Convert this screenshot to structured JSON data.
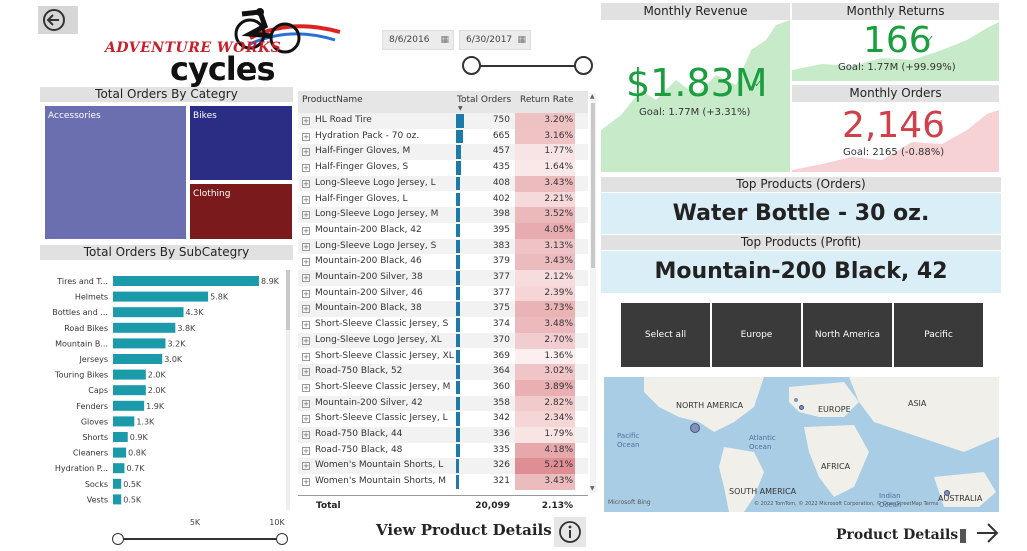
{
  "logo": {
    "line1": "ADVENTURE WORKS",
    "line2": "cycles"
  },
  "date_range": {
    "start": "8/6/2016",
    "end": "6/30/2017",
    "slider_start_fraction": 0.0,
    "slider_end_fraction": 1.0
  },
  "treemap": {
    "title": "Total Orders By Categry",
    "items": [
      {
        "label": "Accessories",
        "color": "#6b6fb0"
      },
      {
        "label": "Bikes",
        "color": "#2b2d84"
      },
      {
        "label": "Clothing",
        "color": "#7a1a1c"
      }
    ]
  },
  "subcat": {
    "title": "Total Orders By SubCategry",
    "axis_ticks": [
      "5K",
      "10K"
    ],
    "slider_start_fraction": 0.0,
    "slider_end_fraction": 1.0
  },
  "chart_data": {
    "type": "bar",
    "orientation": "horizontal",
    "title": "Total Orders By SubCategry",
    "categories": [
      "Tires and T...",
      "Helmets",
      "Bottles and ...",
      "Road Bikes",
      "Mountain B...",
      "Jerseys",
      "Touring Bikes",
      "Caps",
      "Fenders",
      "Gloves",
      "Shorts",
      "Cleaners",
      "Hydration P...",
      "Socks",
      "Vests"
    ],
    "values": [
      8900,
      5800,
      4300,
      3800,
      3200,
      3000,
      2000,
      2000,
      1900,
      1300,
      900,
      800,
      700,
      500,
      500
    ],
    "labels": [
      "8.9K",
      "5.8K",
      "4.3K",
      "3.8K",
      "3.2K",
      "3.0K",
      "2.0K",
      "2.0K",
      "1.9K",
      "1.3K",
      "0.9K",
      "0.8K",
      "0.7K",
      "0.5K",
      "0.5K"
    ],
    "xlim": [
      0,
      10000
    ],
    "xticks": [
      "5K",
      "10K"
    ],
    "color": "#1b9aaa"
  },
  "table": {
    "headers": [
      "ProductName",
      "Total Orders",
      "Return Rate"
    ],
    "rows": [
      {
        "name": "HL Road Tire",
        "orders": "750",
        "rate": "3.20%"
      },
      {
        "name": "Hydration Pack - 70 oz.",
        "orders": "665",
        "rate": "3.16%"
      },
      {
        "name": "Half-Finger Gloves, M",
        "orders": "457",
        "rate": "1.77%"
      },
      {
        "name": "Half-Finger Gloves, S",
        "orders": "435",
        "rate": "1.64%"
      },
      {
        "name": "Long-Sleeve Logo Jersey, L",
        "orders": "408",
        "rate": "3.43%"
      },
      {
        "name": "Half-Finger Gloves, L",
        "orders": "402",
        "rate": "2.21%"
      },
      {
        "name": "Long-Sleeve Logo Jersey, M",
        "orders": "398",
        "rate": "3.52%"
      },
      {
        "name": "Mountain-200 Black, 42",
        "orders": "395",
        "rate": "4.05%"
      },
      {
        "name": "Long-Sleeve Logo Jersey, S",
        "orders": "383",
        "rate": "3.13%"
      },
      {
        "name": "Mountain-200 Black, 46",
        "orders": "379",
        "rate": "3.43%"
      },
      {
        "name": "Mountain-200 Silver, 38",
        "orders": "377",
        "rate": "2.12%"
      },
      {
        "name": "Mountain-200 Silver, 46",
        "orders": "377",
        "rate": "2.39%"
      },
      {
        "name": "Mountain-200 Black, 38",
        "orders": "375",
        "rate": "3.73%"
      },
      {
        "name": "Short-Sleeve Classic Jersey, S",
        "orders": "374",
        "rate": "3.48%"
      },
      {
        "name": "Long-Sleeve Logo Jersey, XL",
        "orders": "370",
        "rate": "2.70%"
      },
      {
        "name": "Short-Sleeve Classic Jersey, XL",
        "orders": "369",
        "rate": "1.36%"
      },
      {
        "name": "Road-750 Black, 52",
        "orders": "364",
        "rate": "3.02%"
      },
      {
        "name": "Short-Sleeve Classic Jersey, M",
        "orders": "360",
        "rate": "3.89%"
      },
      {
        "name": "Mountain-200 Silver, 42",
        "orders": "358",
        "rate": "2.82%"
      },
      {
        "name": "Short-Sleeve Classic Jersey, L",
        "orders": "342",
        "rate": "2.34%"
      },
      {
        "name": "Road-750 Black, 44",
        "orders": "336",
        "rate": "1.79%"
      },
      {
        "name": "Road-750 Black, 48",
        "orders": "335",
        "rate": "4.18%"
      },
      {
        "name": "Women's Mountain Shorts, L",
        "orders": "326",
        "rate": "5.21%"
      },
      {
        "name": "Women's Mountain Shorts, M",
        "orders": "321",
        "rate": "3.43%"
      }
    ],
    "total_label": "Total",
    "total_orders": "20,099",
    "total_rate": "2.13%"
  },
  "view_details": {
    "label": "View Product Details"
  },
  "kpis": {
    "revenue": {
      "title": "Monthly Revenue",
      "value": "$1.83M",
      "goal": "Goal: 1.77M (+3.31%)",
      "color": "#1a9e3f"
    },
    "returns": {
      "title": "Monthly Returns",
      "value": "166",
      "goal": "Goal: 1.77M (+99.99%)",
      "color": "#1a9e3f"
    },
    "orders": {
      "title": "Monthly Orders",
      "value": "2,146",
      "goal": "Goal: 2165 (-0.88%)",
      "color": "#d0404b"
    }
  },
  "top_products": {
    "orders_title": "Top Products (Orders)",
    "orders_value": "Water Bottle - 30 oz.",
    "profit_title": "Top Products (Profit)",
    "profit_value": "Mountain-200 Black, 42"
  },
  "region_buttons": [
    "Select all",
    "Europe",
    "North America",
    "Pacific"
  ],
  "map": {
    "labels": [
      "NORTH AMERICA",
      "EUROPE",
      "ASIA",
      "Pacific Ocean",
      "Atlantic Ocean",
      "AFRICA",
      "SOUTH AMERICA",
      "Indian Ocean",
      "AUSTRALIA"
    ],
    "brand": "Microsoft Bing",
    "copyright": "© 2022 TomTom, © 2022 Microsoft Corporation, © OpenStreetMap Terms"
  },
  "footer": {
    "label": "Product Details"
  }
}
